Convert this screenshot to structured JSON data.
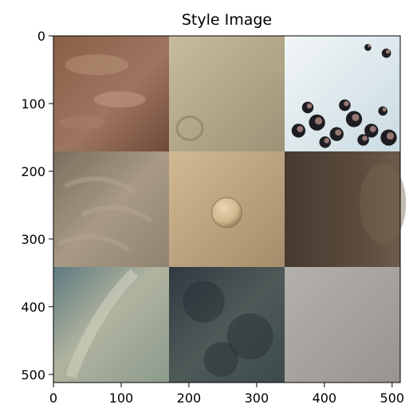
{
  "chart_data": {
    "type": "image",
    "title": "Style Image",
    "xlabel": "",
    "ylabel": "",
    "xlim": [
      0,
      512
    ],
    "ylim": [
      512,
      0
    ],
    "x_ticks": [
      0,
      100,
      200,
      300,
      400,
      500
    ],
    "y_ticks": [
      0,
      100,
      200,
      300,
      400,
      500
    ],
    "grid": "3x3 mosaic of terrain texture tiles",
    "tiles": [
      {
        "name": "rust-brown-dune-texture",
        "row": 0,
        "col": 0,
        "colors": [
          "#8a5f46",
          "#a8806a",
          "#6f4a38"
        ]
      },
      {
        "name": "tan-crater-plain",
        "row": 0,
        "col": 1,
        "colors": [
          "#b5a98c",
          "#c8bc9f",
          "#9e9276"
        ]
      },
      {
        "name": "white-frost-dark-spots",
        "row": 0,
        "col": 2,
        "colors": [
          "#e9f0f2",
          "#c9dbe2",
          "#1e1e22"
        ]
      },
      {
        "name": "gray-tan-ridged-slope",
        "row": 1,
        "col": 0,
        "colors": [
          "#8f8370",
          "#a89a84",
          "#7a6f5e"
        ]
      },
      {
        "name": "beige-single-crater",
        "row": 1,
        "col": 1,
        "colors": [
          "#c0a57f",
          "#d2b993",
          "#a58d6b"
        ]
      },
      {
        "name": "dark-brown-dune-field",
        "row": 1,
        "col": 2,
        "colors": [
          "#5a4a3c",
          "#6d5b4a",
          "#463a30"
        ]
      },
      {
        "name": "blue-gray-layered-terrain",
        "row": 2,
        "col": 0,
        "colors": [
          "#8c9a8c",
          "#b0b4a0",
          "#5f7a80"
        ]
      },
      {
        "name": "dark-teal-rough-terrain",
        "row": 2,
        "col": 1,
        "colors": [
          "#3d4a4c",
          "#2e3a40",
          "#4e5a58"
        ]
      },
      {
        "name": "light-gray-smooth-texture",
        "row": 2,
        "col": 2,
        "colors": [
          "#a3a09b",
          "#b4b1ac",
          "#97948f"
        ]
      }
    ]
  }
}
